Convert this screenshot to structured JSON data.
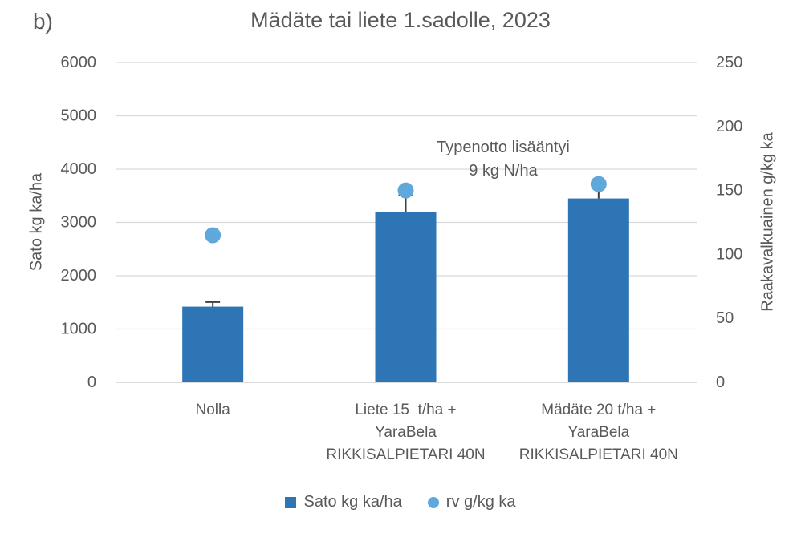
{
  "figure": {
    "panel_label": "b)",
    "annotation_lines": [
      "Typenotto lisääntyi",
      "9 kg N/ha"
    ]
  },
  "chart_data": {
    "type": "bar",
    "title": "Mädäte tai liete 1.sadolle, 2023",
    "categories": [
      [
        "Nolla"
      ],
      [
        "Liete 15  t/ha +",
        "YaraBela",
        "RIKKISALPIETARI 40N"
      ],
      [
        "Mädäte 20 t/ha +",
        "YaraBela",
        "RIKKISALPIETARI 40N"
      ]
    ],
    "series": [
      {
        "name": "Sato kg ka/ha",
        "plot_type": "bar",
        "axis": "left",
        "values": [
          1420,
          3190,
          3450
        ],
        "errors_plus": [
          85,
          320,
          250
        ],
        "color": "#2E75B6"
      },
      {
        "name": "rv g/kg ka",
        "plot_type": "scatter",
        "axis": "right",
        "values": [
          115,
          150,
          155
        ],
        "color": "#5FA8DC"
      }
    ],
    "left_axis": {
      "label": "Sato kg ka/ha",
      "min": 0,
      "max": 6000,
      "ticks": [
        0,
        1000,
        2000,
        3000,
        4000,
        5000,
        6000
      ]
    },
    "right_axis": {
      "label": "Raakavalkuainen g/kg ka",
      "min": 0,
      "max": 250,
      "ticks": [
        0,
        50,
        100,
        150,
        200,
        250
      ]
    },
    "grid": true,
    "legend_position": "bottom",
    "annotation": "Typenotto lisääntyi 9 kg N/ha"
  },
  "legend": {
    "items": [
      {
        "label": "Sato kg ka/ha",
        "marker": "square",
        "color": "#2E75B6"
      },
      {
        "label": "rv g/kg ka",
        "marker": "circle",
        "color": "#5FA8DC"
      }
    ]
  },
  "colors": {
    "bar": "#2E75B6",
    "dot": "#5FA8DC",
    "gridline": "#D9D9D9",
    "baseline": "#C6C6C6",
    "error_bar": "#404040",
    "text": "#595959"
  }
}
